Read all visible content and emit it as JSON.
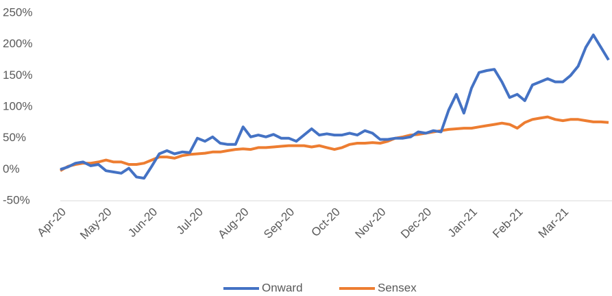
{
  "chart_data": {
    "type": "line",
    "categories": [
      "Apr-20",
      null,
      null,
      null,
      null,
      null,
      "May-20",
      null,
      null,
      null,
      null,
      null,
      "Jun-20",
      null,
      null,
      null,
      null,
      null,
      "Jul-20",
      null,
      null,
      null,
      null,
      null,
      "Aug-20",
      null,
      null,
      null,
      null,
      null,
      "Sep-20",
      null,
      null,
      null,
      null,
      null,
      "Oct-20",
      null,
      null,
      null,
      null,
      null,
      "Nov-20",
      null,
      null,
      null,
      null,
      null,
      "Dec-20",
      null,
      null,
      null,
      null,
      null,
      "Jan-21",
      null,
      null,
      null,
      null,
      null,
      "Feb-21",
      null,
      null,
      null,
      null,
      null,
      "Mar-21",
      null,
      null,
      null,
      null,
      null,
      null
    ],
    "series": [
      {
        "name": "Onward",
        "color": "#4472c4",
        "values": [
          0,
          4,
          10,
          12,
          6,
          8,
          -2,
          -4,
          -6,
          2,
          -12,
          -14,
          5,
          25,
          30,
          25,
          28,
          27,
          50,
          45,
          52,
          42,
          40,
          40,
          68,
          52,
          55,
          52,
          56,
          50,
          50,
          45,
          55,
          65,
          55,
          57,
          55,
          55,
          58,
          55,
          62,
          58,
          48,
          48,
          50,
          50,
          52,
          60,
          58,
          62,
          60,
          95,
          120,
          90,
          130,
          155,
          158,
          160,
          140,
          115,
          120,
          110,
          135,
          140,
          145,
          140,
          140,
          150,
          165,
          195,
          215,
          195,
          175
        ]
      },
      {
        "name": "Sensex",
        "color": "#ed7d31",
        "values": [
          -2,
          5,
          8,
          10,
          10,
          12,
          15,
          12,
          12,
          8,
          8,
          10,
          15,
          20,
          20,
          18,
          22,
          24,
          25,
          26,
          28,
          28,
          30,
          32,
          33,
          32,
          35,
          35,
          36,
          37,
          38,
          38,
          38,
          36,
          38,
          35,
          32,
          35,
          40,
          42,
          42,
          43,
          42,
          45,
          50,
          52,
          55,
          56,
          58,
          60,
          62,
          64,
          65,
          66,
          66,
          68,
          70,
          72,
          74,
          72,
          66,
          75,
          80,
          82,
          84,
          80,
          78,
          80,
          80,
          78,
          76,
          76,
          75
        ]
      }
    ],
    "ylim": [
      -50,
      250
    ],
    "yticks": [
      {
        "value": -50,
        "label": "-50%"
      },
      {
        "value": 0,
        "label": "0%"
      },
      {
        "value": 50,
        "label": "50%"
      },
      {
        "value": 100,
        "label": "100%"
      },
      {
        "value": 150,
        "label": "150%"
      },
      {
        "value": 200,
        "label": "200%"
      },
      {
        "value": 250,
        "label": "250%"
      }
    ],
    "grid": false,
    "legend": "bottom"
  }
}
